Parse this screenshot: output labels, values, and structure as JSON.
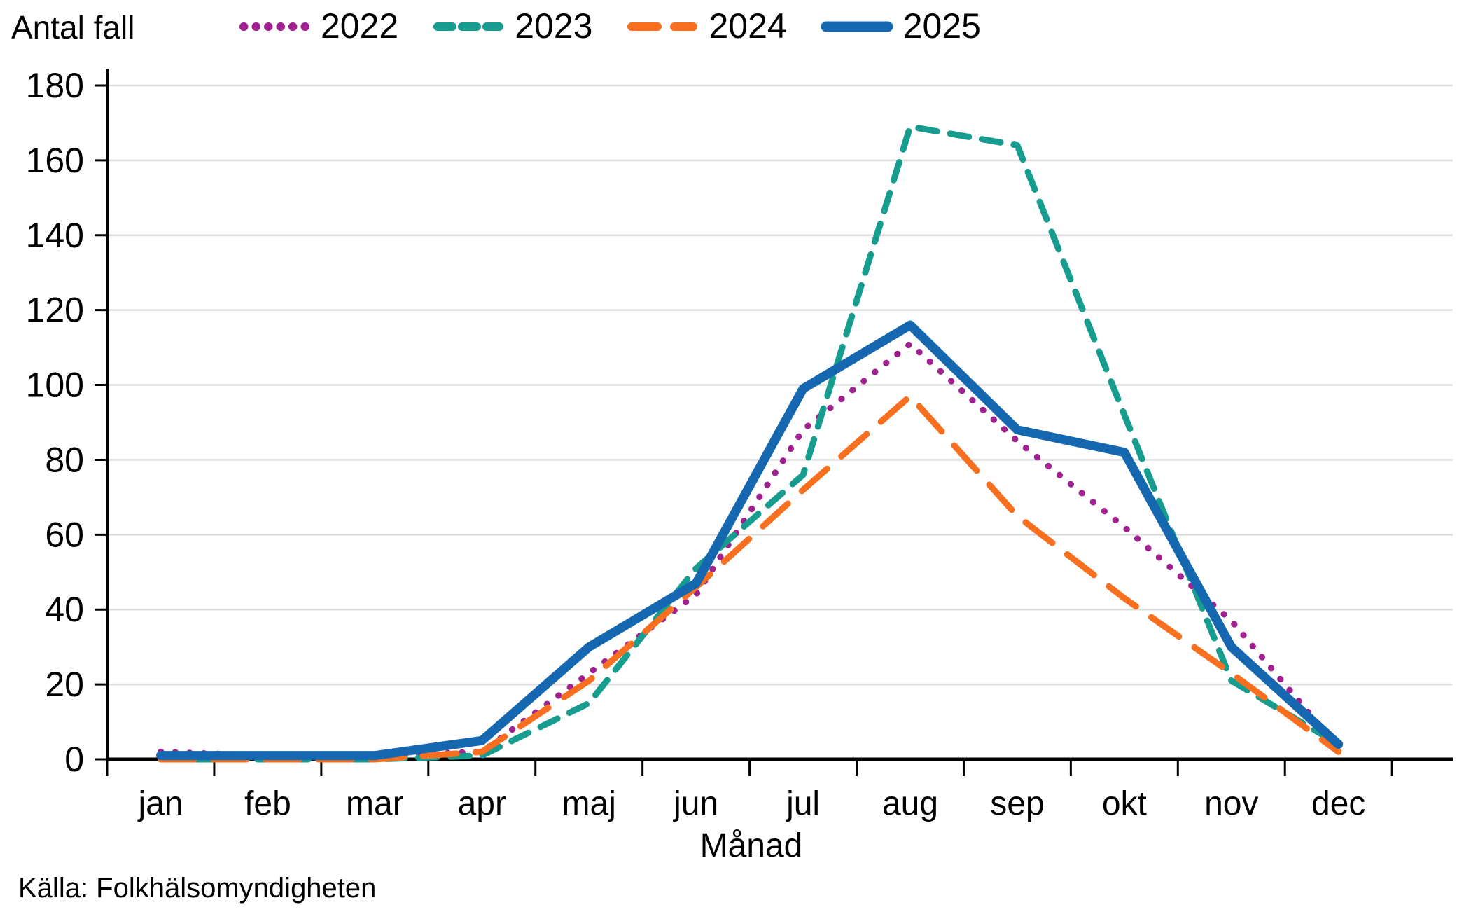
{
  "chart_data": {
    "type": "line",
    "title": "Antal fall",
    "xlabel": "Månad",
    "source": "Källa: Folkhälsomyndigheten",
    "categories": [
      "jan",
      "feb",
      "mar",
      "apr",
      "maj",
      "jun",
      "jul",
      "aug",
      "sep",
      "okt",
      "nov",
      "dec"
    ],
    "y_ticks": [
      0,
      20,
      40,
      60,
      80,
      100,
      120,
      140,
      160,
      180
    ],
    "ylim": [
      0,
      180
    ],
    "grid": "horizontal-light-gray",
    "legend_position": "top-center",
    "colors": {
      "grid": "#DCDCDC",
      "axis": "#000000",
      "text": "#000000"
    },
    "series": [
      {
        "name": "2022",
        "color": "#A0218F",
        "style": "dotted",
        "values": [
          2,
          1,
          1,
          2,
          23,
          44,
          88,
          111,
          85,
          62,
          37,
          3
        ]
      },
      {
        "name": "2023",
        "color": "#169D8F",
        "style": "dashed",
        "values": [
          0,
          0,
          0,
          1,
          15,
          51,
          76,
          169,
          164,
          92,
          21,
          4
        ]
      },
      {
        "name": "2024",
        "color": "#F76F1F",
        "style": "longdash",
        "values": [
          0,
          0,
          0,
          2,
          21,
          46,
          72,
          97,
          65,
          43,
          23,
          2
        ]
      },
      {
        "name": "2025",
        "color": "#1567AF",
        "style": "solid",
        "values": [
          1,
          1,
          1,
          5,
          30,
          47,
          99,
          116,
          88,
          82,
          30,
          4
        ]
      }
    ]
  }
}
